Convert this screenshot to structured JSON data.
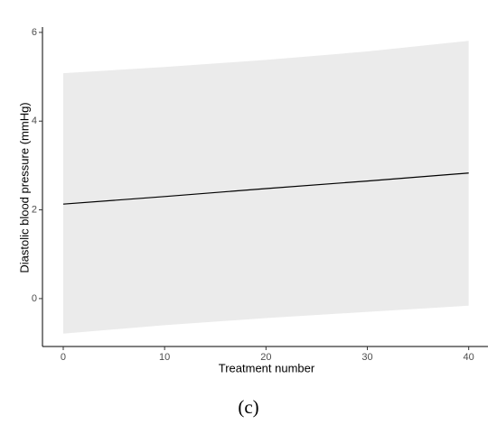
{
  "chart_data": {
    "type": "line",
    "x_label": "Treatment number",
    "y_label": "Diastolic blood pressure (mmHg)",
    "caption": "(c)",
    "x": [
      0,
      10,
      20,
      30,
      40
    ],
    "series": [
      {
        "color": "#000000",
        "values": [
          2.13,
          2.3,
          2.48,
          2.65,
          2.83
        ]
      }
    ],
    "band": {
      "color": "#ebebeb",
      "lower": [
        -0.79,
        -0.6,
        -0.44,
        -0.3,
        -0.16
      ],
      "upper": [
        5.08,
        5.22,
        5.38,
        5.57,
        5.81
      ]
    },
    "xlim": [
      -2.05,
      41.9
    ],
    "ylim": [
      -1.08,
      6.12
    ],
    "xticks": [
      0,
      10,
      20,
      30,
      40
    ],
    "yticks": [
      0,
      2,
      4,
      6
    ],
    "grid": false
  }
}
